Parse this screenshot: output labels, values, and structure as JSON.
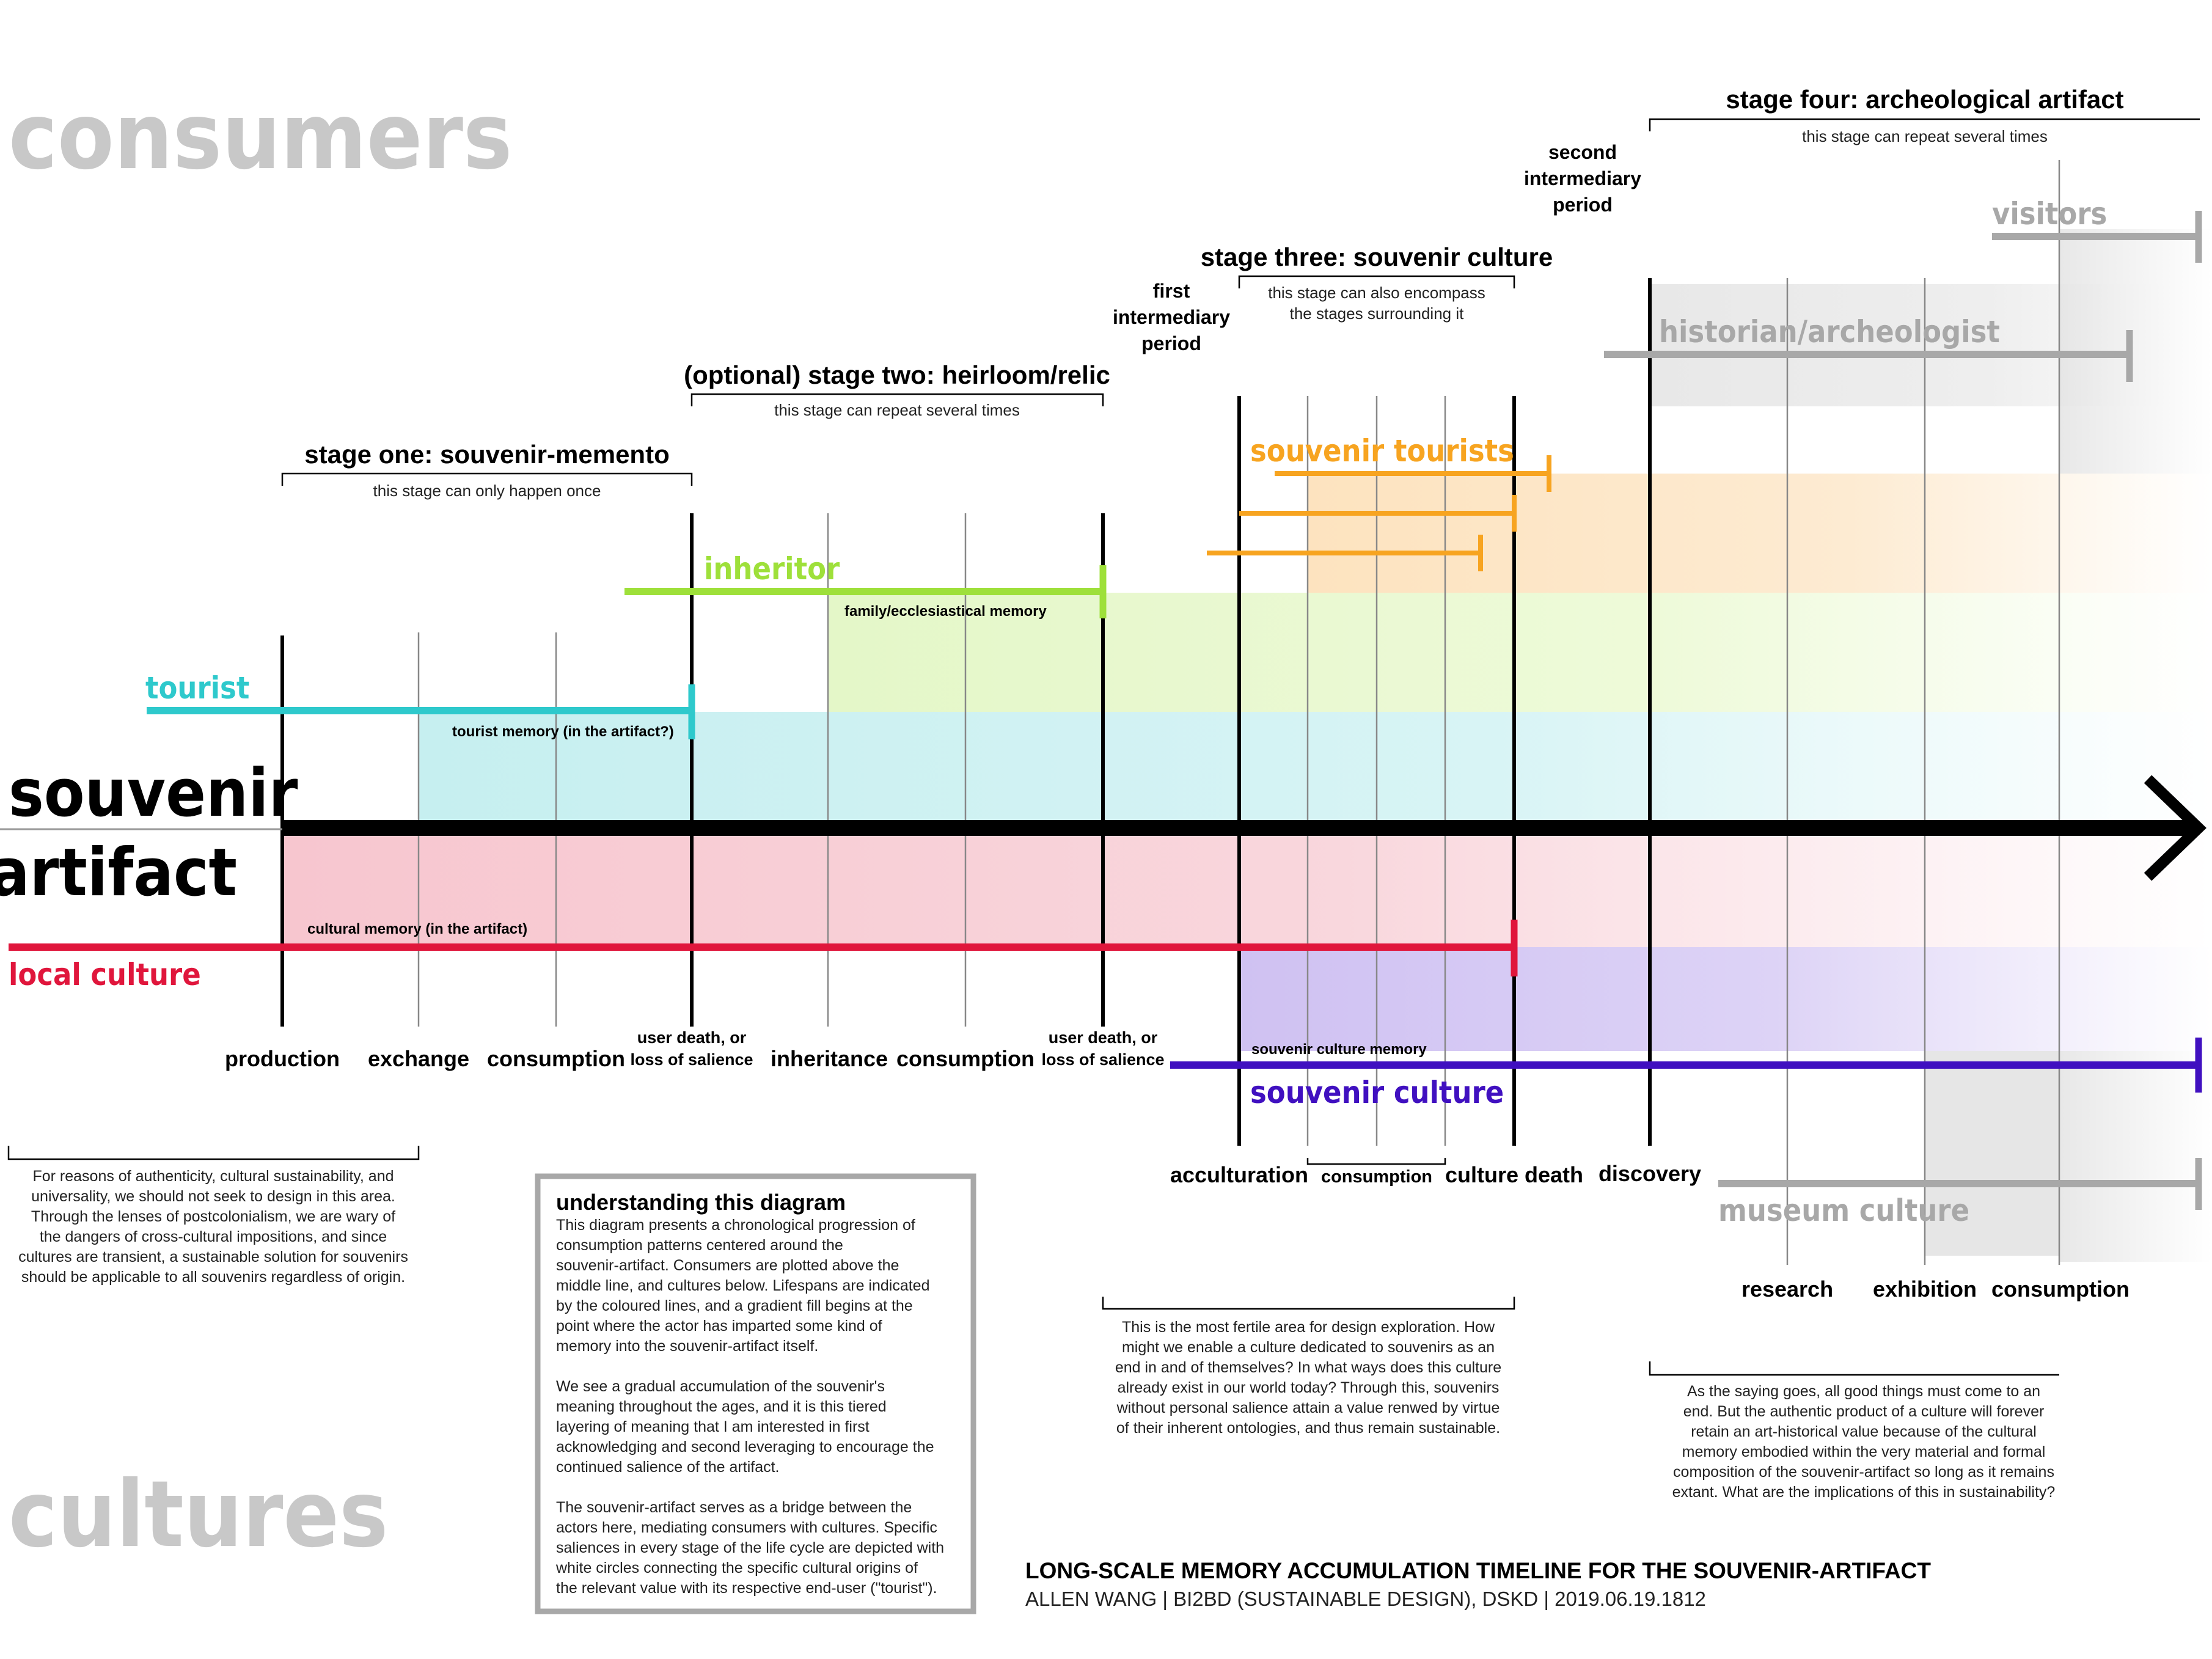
{
  "side_labels": {
    "consumers": "consumers",
    "cultures": "cultures",
    "souvenir": "souvenir",
    "artifact": "artifact"
  },
  "stages": {
    "one": {
      "title": "stage one: souvenir-memento",
      "note": "this stage can only happen once"
    },
    "two": {
      "title": "(optional) stage two: heirloom/relic",
      "note": "this stage can repeat several times"
    },
    "three": {
      "title": "stage three: souvenir culture",
      "note_line1": "this stage can also encompass",
      "note_line2": "the stages surrounding it"
    },
    "four": {
      "title": "stage four: archeological artifact",
      "note": "this stage can repeat several times"
    },
    "first_intermediary": [
      "first",
      "intermediary",
      "period"
    ],
    "second_intermediary": [
      "second",
      "intermediary",
      "period"
    ]
  },
  "actors": {
    "tourist": "tourist",
    "inheritor": "inheritor",
    "souvenir_tourists": "souvenir tourists",
    "historian": "historian/archeologist",
    "visitors": "visitors",
    "local_culture": "local culture",
    "souvenir_culture": "souvenir culture",
    "museum_culture": "museum culture"
  },
  "memories": {
    "tourist_memory": "tourist memory (in the artifact?)",
    "family_memory": "family/ecclesiastical memory",
    "cultural_memory": "cultural memory (in the artifact)",
    "souvenir_culture_memory": "souvenir culture memory"
  },
  "timeline_labels": {
    "production": "production",
    "exchange": "exchange",
    "consumption": "consumption",
    "user_death_1": [
      "user death, or",
      "loss of salience"
    ],
    "inheritance": "inheritance",
    "consumption_2": "consumption",
    "user_death_2": [
      "user death, or",
      "loss of salience"
    ],
    "acculturation": "acculturation",
    "consumption_3": "consumption",
    "culture_death": "culture death",
    "discovery": "discovery",
    "research": "research",
    "exhibition": "exhibition",
    "consumption_4": "consumption"
  },
  "notes": {
    "authenticity": [
      "For reasons of authenticity, cultural sustainability, and",
      "universality, we should not seek to design in this area.",
      "Through the lenses of postcolonialism, we are wary of",
      "the dangers of cross-cultural impositions, and since",
      "cultures are transient, a sustainable solution for souvenirs",
      "should be applicable to all souvenirs regardless of origin."
    ],
    "fertile": [
      "This is the most fertile area for design exploration. How",
      "might we enable a culture dedicated to souvenirs as an",
      "end in and of themselves? In what ways does this culture",
      "already exist in our world today? Through this, souvenirs",
      "without personal salience attain a value renwed by virtue",
      "of their inherent ontologies, and thus remain sustainable."
    ],
    "saying": [
      "As the saying goes, all good things must come to an",
      "end. But the authentic product of a culture will forever",
      "retain an art-historical value because of the cultural",
      "memory embodied within the very material and formal",
      "composition of the souvenir-artifact so long as it remains",
      "extant. What are the implications of this in sustainability?"
    ]
  },
  "understanding": {
    "title": "understanding this diagram",
    "para1": [
      "This diagram presents a chronological progression of",
      "consumption patterns centered around the",
      "souvenir-artifact. Consumers are plotted above the",
      "middle line, and cultures below. Lifespans are indicated",
      "by the coloured lines, and a gradient fill begins at the",
      "point where the actor has imparted some kind of",
      "memory into the souvenir-artifact itself."
    ],
    "para2": [
      "We see a gradual accumulation of the souvenir's",
      "meaning throughout the ages, and it is this tiered",
      "layering of meaning that I am interested in first",
      "acknowledging and second leveraging to encourage the",
      "continued salience of the artifact."
    ],
    "para3": [
      "The souvenir-artifact serves as a bridge between the",
      "actors here, mediating consumers with cultures. Specific",
      "saliences in every stage of the life cycle are depicted with",
      "white circles connecting the specific cultural origins of",
      "the relevant value with its respective end-user (\"tourist\")."
    ]
  },
  "footer": {
    "title": "LONG-SCALE MEMORY ACCUMULATION TIMELINE FOR THE SOUVENIR-ARTIFACT",
    "credit": "ALLEN WANG | BI2BD (SUSTAINABLE DESIGN), DSKD | 2019.06.19.1812"
  },
  "colors": {
    "tourist": "#2ec9cc",
    "inheritor": "#9ee03a",
    "souvenir_tourists": "#f7a420",
    "historian": "#9a9a9a",
    "local_culture": "#e0163c",
    "souvenir_culture": "#4010c0",
    "side_label_gray": "#c8c8c8"
  }
}
